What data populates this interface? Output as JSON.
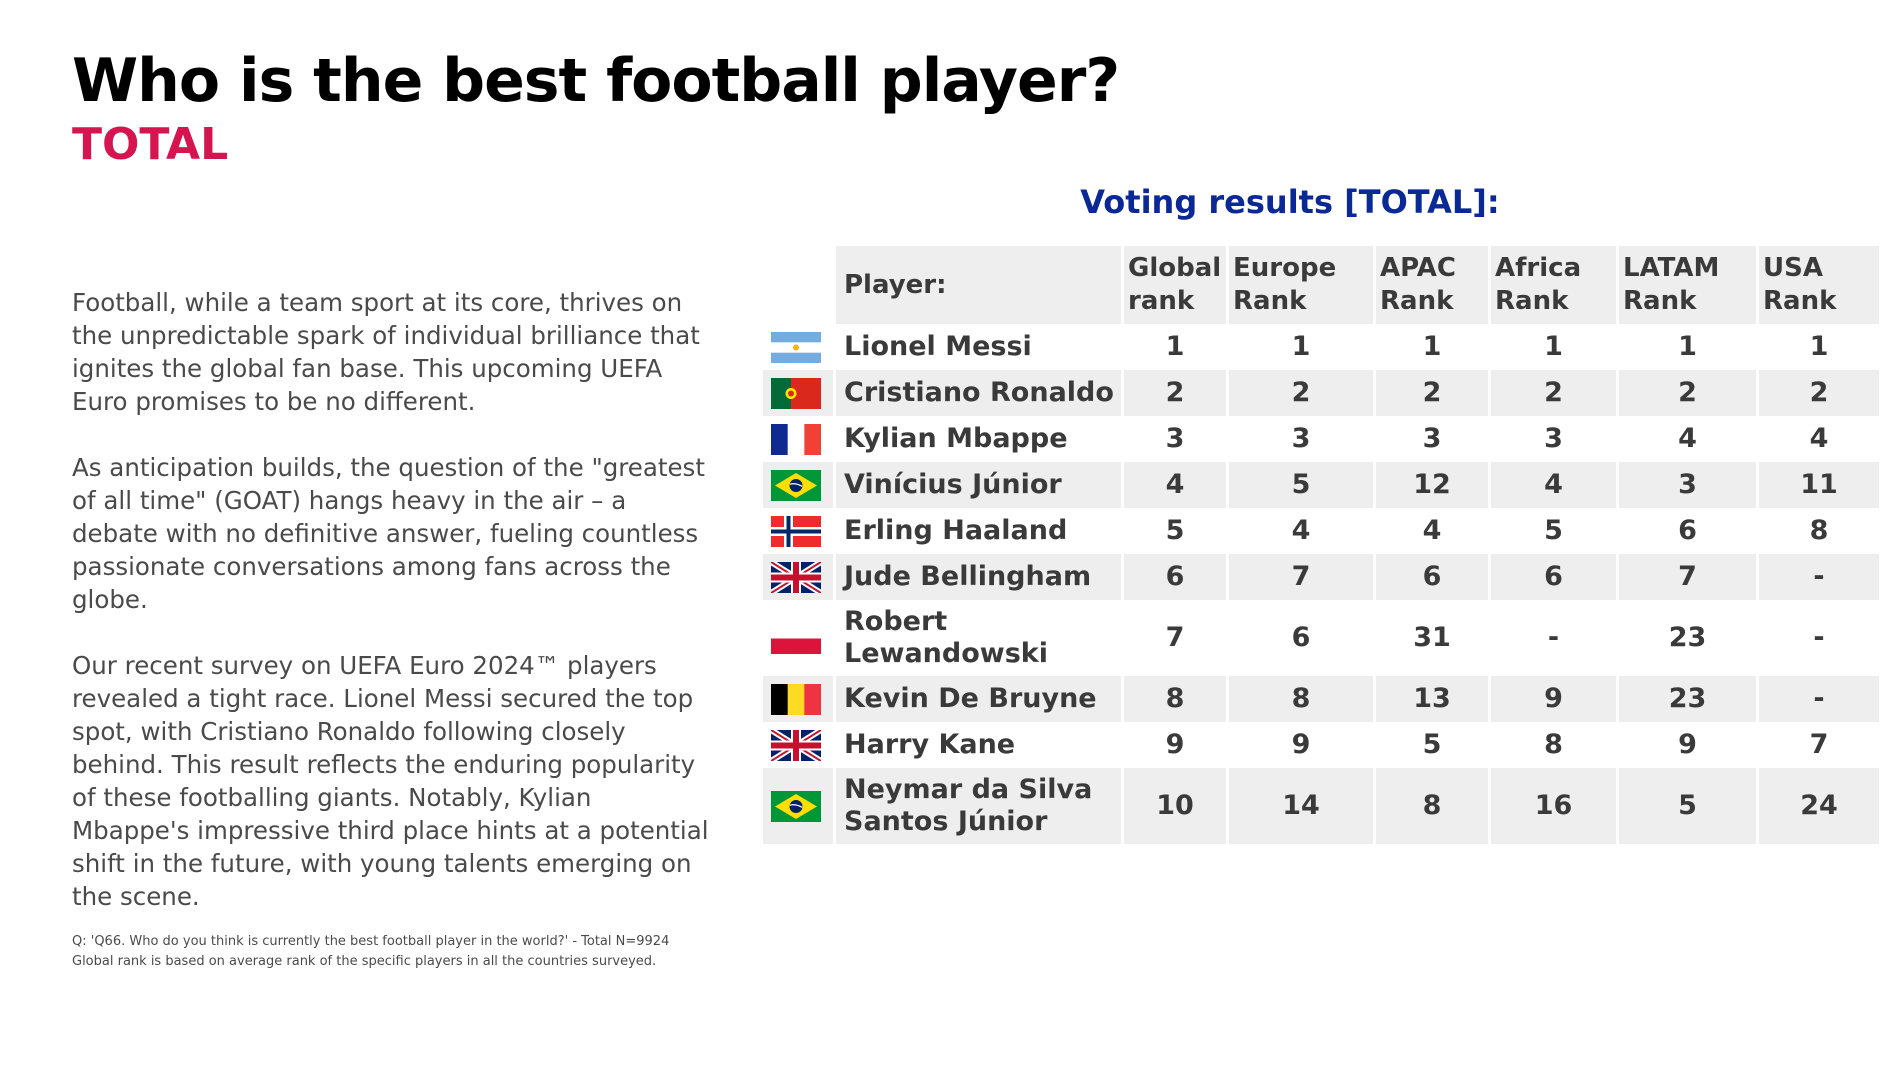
{
  "header": {
    "title": "Who is the best football player?",
    "subtitle": "TOTAL"
  },
  "intro": {
    "paragraphs": [
      "Football, while a team sport at its core, thrives on the unpredictable spark of individual brilliance that ignites the global fan base. This upcoming UEFA Euro promises to be no different.",
      "As anticipation builds, the question of the \"greatest of all time\" (GOAT) hangs heavy in the air – a debate with no definitive answer, fueling countless passionate conversations among fans across the globe.",
      "Our recent survey on UEFA Euro 2024™ players revealed a tight race. Lionel Messi secured the top spot, with Cristiano Ronaldo following closely behind. This result reflects the enduring popularity of these footballing giants. Notably, Kylian Mbappe's impressive third place hints at a potential shift in the future, with young talents emerging on the scene."
    ]
  },
  "footnote": {
    "line1": "Q: 'Q66. Who do you think is currently the best football player in the world?' -  Total N=9924",
    "line2": "Global rank is based on average rank of the specific players in all the countries surveyed."
  },
  "results": {
    "title": "Voting results [TOTAL]:",
    "columns": {
      "player": "Player:",
      "global_1": "Global",
      "global_2": "rank",
      "europe_1": "Europe",
      "europe_2": "Rank",
      "apac_1": "APAC",
      "apac_2": "Rank",
      "africa_1": "Africa",
      "africa_2": "Rank",
      "latam_1": "LATAM",
      "latam_2": "Rank",
      "usa_1": "USA",
      "usa_2": "Rank"
    },
    "rows": [
      {
        "flag": "argentina-flag-icon",
        "name": "Lionel Messi",
        "global": "1",
        "europe": "1",
        "apac": "1",
        "africa": "1",
        "latam": "1",
        "usa": "1"
      },
      {
        "flag": "portugal-flag-icon",
        "name": "Cristiano Ronaldo",
        "global": "2",
        "europe": "2",
        "apac": "2",
        "africa": "2",
        "latam": "2",
        "usa": "2"
      },
      {
        "flag": "france-flag-icon",
        "name": "Kylian Mbappe",
        "global": "3",
        "europe": "3",
        "apac": "3",
        "africa": "3",
        "latam": "4",
        "usa": "4"
      },
      {
        "flag": "brazil-flag-icon",
        "name": "Vinícius Júnior",
        "global": "4",
        "europe": "5",
        "apac": "12",
        "africa": "4",
        "latam": "3",
        "usa": "11"
      },
      {
        "flag": "norway-flag-icon",
        "name": "Erling Haaland",
        "global": "5",
        "europe": "4",
        "apac": "4",
        "africa": "5",
        "latam": "6",
        "usa": "8"
      },
      {
        "flag": "uk-flag-icon",
        "name": "Jude Bellingham",
        "global": "6",
        "europe": "7",
        "apac": "6",
        "africa": "6",
        "latam": "7",
        "usa": "-"
      },
      {
        "flag": "poland-flag-icon",
        "name_line1": "Robert",
        "name_line2": "Lewandowski",
        "global": "7",
        "europe": "6",
        "apac": "31",
        "africa": "-",
        "latam": "23",
        "usa": "-"
      },
      {
        "flag": "belgium-flag-icon",
        "name": "Kevin De Bruyne",
        "global": "8",
        "europe": "8",
        "apac": "13",
        "africa": "9",
        "latam": "23",
        "usa": "-"
      },
      {
        "flag": "uk-flag-icon",
        "name": "Harry Kane",
        "global": "9",
        "europe": "9",
        "apac": "5",
        "africa": "8",
        "latam": "9",
        "usa": "7"
      },
      {
        "flag": "brazil-flag-icon",
        "name_line1": "Neymar da Silva",
        "name_line2": "Santos Júnior",
        "global": "10",
        "europe": "14",
        "apac": "8",
        "africa": "16",
        "latam": "5",
        "usa": "24"
      }
    ]
  },
  "colors": {
    "subtitle": "#d6144f",
    "results_title": "#0a2896",
    "shading": "#eeeeee",
    "body_text": "#4a4a4a"
  }
}
